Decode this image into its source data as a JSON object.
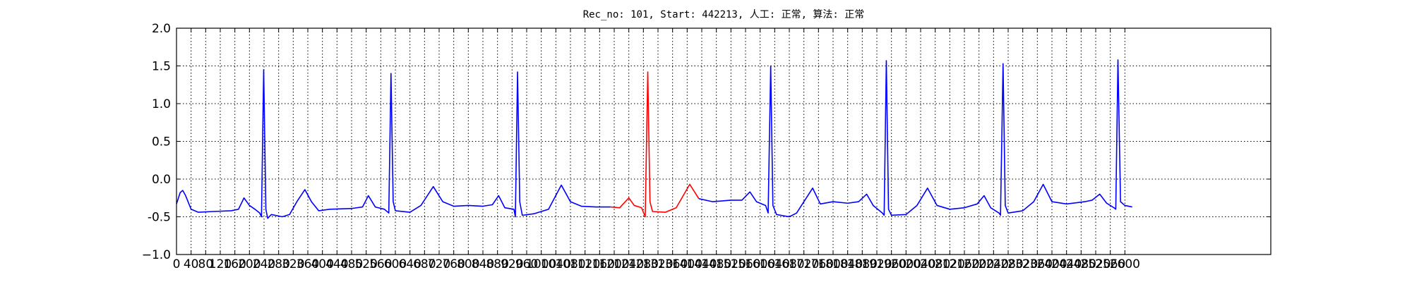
{
  "chart_data": {
    "type": "line",
    "title": "Rec_no: 101, Start: 442213, 人工: 正常, 算法: 正常",
    "xlim": [
      0,
      3000
    ],
    "ylim": [
      -1.0,
      2.0
    ],
    "xticks": [
      0,
      40,
      80,
      120,
      160,
      200,
      240,
      280,
      320,
      360,
      400,
      440,
      480,
      520,
      560,
      600,
      640,
      680,
      720,
      760,
      800,
      840,
      880,
      920,
      960,
      1000,
      1040,
      1080,
      1120,
      1160,
      1200,
      1240,
      1280,
      1320,
      1360,
      1400,
      1440,
      1480,
      1520,
      1560,
      1600,
      1640,
      1680,
      1720,
      1760,
      1800,
      1840,
      1880,
      1920,
      1960,
      2000,
      2040,
      2080,
      2120,
      2160,
      2200,
      2240,
      2280,
      2320,
      2360,
      2400,
      2440,
      2480,
      2520,
      2560,
      2600
    ],
    "yticks": [
      {
        "value": -1.0,
        "label": "−1.0"
      },
      -0.5,
      {
        "value": 0.0,
        "label": "0.0"
      },
      0.5,
      {
        "value": 1.0,
        "label": "1.0"
      },
      1.5,
      {
        "value": 2.0,
        "label": "2.0"
      }
    ],
    "grid": true,
    "series": [
      {
        "color": "#0000ff",
        "x": [
          0,
          10,
          17,
          25,
          40,
          60,
          100,
          150,
          170,
          185,
          200,
          215,
          228,
          233,
          239,
          245,
          250,
          260,
          290,
          310,
          330,
          352,
          370,
          390,
          420,
          480,
          510,
          526,
          545,
          570,
          582,
          588,
          594,
          600,
          640,
          670,
          704,
          730,
          760,
          800,
          840,
          866,
          883,
          900,
          925,
          929,
          935,
          941,
          948,
          980,
          1020,
          1055,
          1080,
          1110,
          1150,
          1190,
          1300,
          1432,
          1470,
          1520,
          1550,
          1572,
          1590,
          1615,
          1622,
          1629,
          1635,
          1645,
          1680,
          1700,
          1720,
          1744,
          1765,
          1800,
          1840,
          1870,
          1892,
          1910,
          1935,
          1940,
          1946,
          1952,
          1960,
          2000,
          2030,
          2059,
          2085,
          2120,
          2160,
          2195,
          2214,
          2232,
          2255,
          2259,
          2266,
          2272,
          2280,
          2320,
          2350,
          2376,
          2400,
          2440,
          2490,
          2510,
          2531,
          2550,
          2570,
          2575,
          2581,
          2588,
          2600,
          2620
        ],
        "values": [
          -0.33,
          -0.18,
          -0.15,
          -0.22,
          -0.4,
          -0.44,
          -0.43,
          -0.42,
          -0.4,
          -0.25,
          -0.35,
          -0.4,
          -0.45,
          -0.5,
          1.45,
          -0.4,
          -0.52,
          -0.47,
          -0.5,
          -0.47,
          -0.3,
          -0.14,
          -0.3,
          -0.42,
          -0.4,
          -0.39,
          -0.37,
          -0.22,
          -0.37,
          -0.4,
          -0.45,
          1.4,
          -0.3,
          -0.42,
          -0.44,
          -0.35,
          -0.1,
          -0.3,
          -0.36,
          -0.35,
          -0.36,
          -0.34,
          -0.22,
          -0.38,
          -0.4,
          -0.5,
          1.42,
          -0.3,
          -0.48,
          -0.46,
          -0.4,
          -0.08,
          -0.3,
          -0.36,
          -0.37,
          -0.37,
          null,
          -0.26,
          -0.3,
          -0.28,
          -0.28,
          -0.17,
          -0.3,
          -0.35,
          -0.45,
          1.5,
          -0.35,
          -0.47,
          -0.5,
          -0.45,
          -0.3,
          -0.12,
          -0.33,
          -0.3,
          -0.32,
          -0.3,
          -0.2,
          -0.35,
          -0.45,
          -0.48,
          1.57,
          -0.4,
          -0.48,
          -0.47,
          -0.35,
          -0.12,
          -0.35,
          -0.4,
          -0.38,
          -0.33,
          -0.22,
          -0.38,
          -0.45,
          -0.48,
          1.53,
          -0.35,
          -0.45,
          -0.42,
          -0.3,
          -0.07,
          -0.3,
          -0.33,
          -0.3,
          -0.28,
          -0.2,
          -0.32,
          -0.38,
          -0.4,
          1.58,
          -0.3,
          -0.35,
          -0.37
        ]
      },
      {
        "color": "#ff0000",
        "x": [
          1190,
          1215,
          1240,
          1255,
          1275,
          1285,
          1292,
          1298,
          1305,
          1340,
          1370,
          1407,
          1432
        ],
        "values": [
          -0.37,
          -0.38,
          -0.25,
          -0.35,
          -0.38,
          -0.5,
          1.42,
          -0.3,
          -0.43,
          -0.44,
          -0.38,
          -0.07,
          -0.26
        ]
      }
    ]
  }
}
